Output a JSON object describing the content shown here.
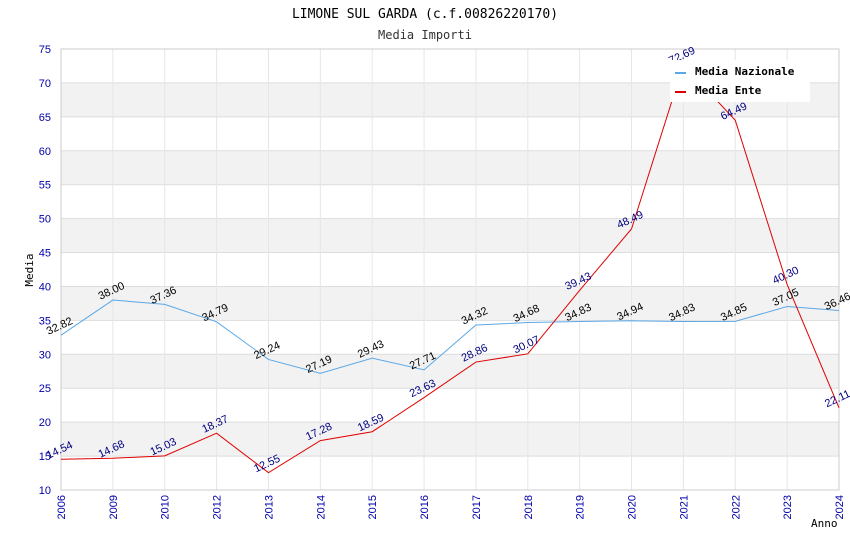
{
  "chart_data": {
    "type": "line",
    "title": "LIMONE SUL GARDA (c.f.00826220170)",
    "subtitle": "Media Importi",
    "xlabel": "Anno",
    "ylabel": "Media",
    "ylim": [
      10,
      75
    ],
    "yticks": [
      "10",
      "15",
      "20",
      "25",
      "30",
      "35",
      "40",
      "45",
      "50",
      "55",
      "60",
      "65",
      "70",
      "75"
    ],
    "categories": [
      "2006",
      "2009",
      "2010",
      "2012",
      "2013",
      "2014",
      "2015",
      "2016",
      "2017",
      "2018",
      "2019",
      "2020",
      "2021",
      "2022",
      "2023",
      "2024"
    ],
    "series": [
      {
        "name": "Media Nazionale",
        "color": "#5ba8e6",
        "values": [
          32.82,
          38.0,
          37.36,
          34.79,
          29.24,
          27.19,
          29.43,
          27.71,
          34.32,
          34.68,
          34.83,
          34.94,
          34.83,
          34.85,
          37.05,
          36.46
        ],
        "labels": [
          "32.82",
          "38.00",
          "37.36",
          "34.79",
          "29.24",
          "27.19",
          "29.43",
          "27.71",
          "34.32",
          "34.68",
          "34.83",
          "34.94",
          "34.83",
          "34.85",
          "37.05",
          "36.46"
        ]
      },
      {
        "name": "Media Ente",
        "color": "#e00000",
        "values": [
          14.54,
          14.68,
          15.03,
          18.37,
          12.55,
          17.28,
          18.59,
          23.63,
          28.86,
          30.07,
          39.43,
          48.49,
          72.69,
          64.49,
          40.3,
          22.11
        ],
        "labels": [
          "14.54",
          "14.68",
          "15.03",
          "18.37",
          "12.55",
          "17.28",
          "18.59",
          "23.63",
          "28.86",
          "30.07",
          "39.43",
          "48.49",
          "72.69",
          "64.49",
          "40.30",
          "22.11"
        ]
      }
    ],
    "legend_position": "top-right",
    "grid": true
  }
}
